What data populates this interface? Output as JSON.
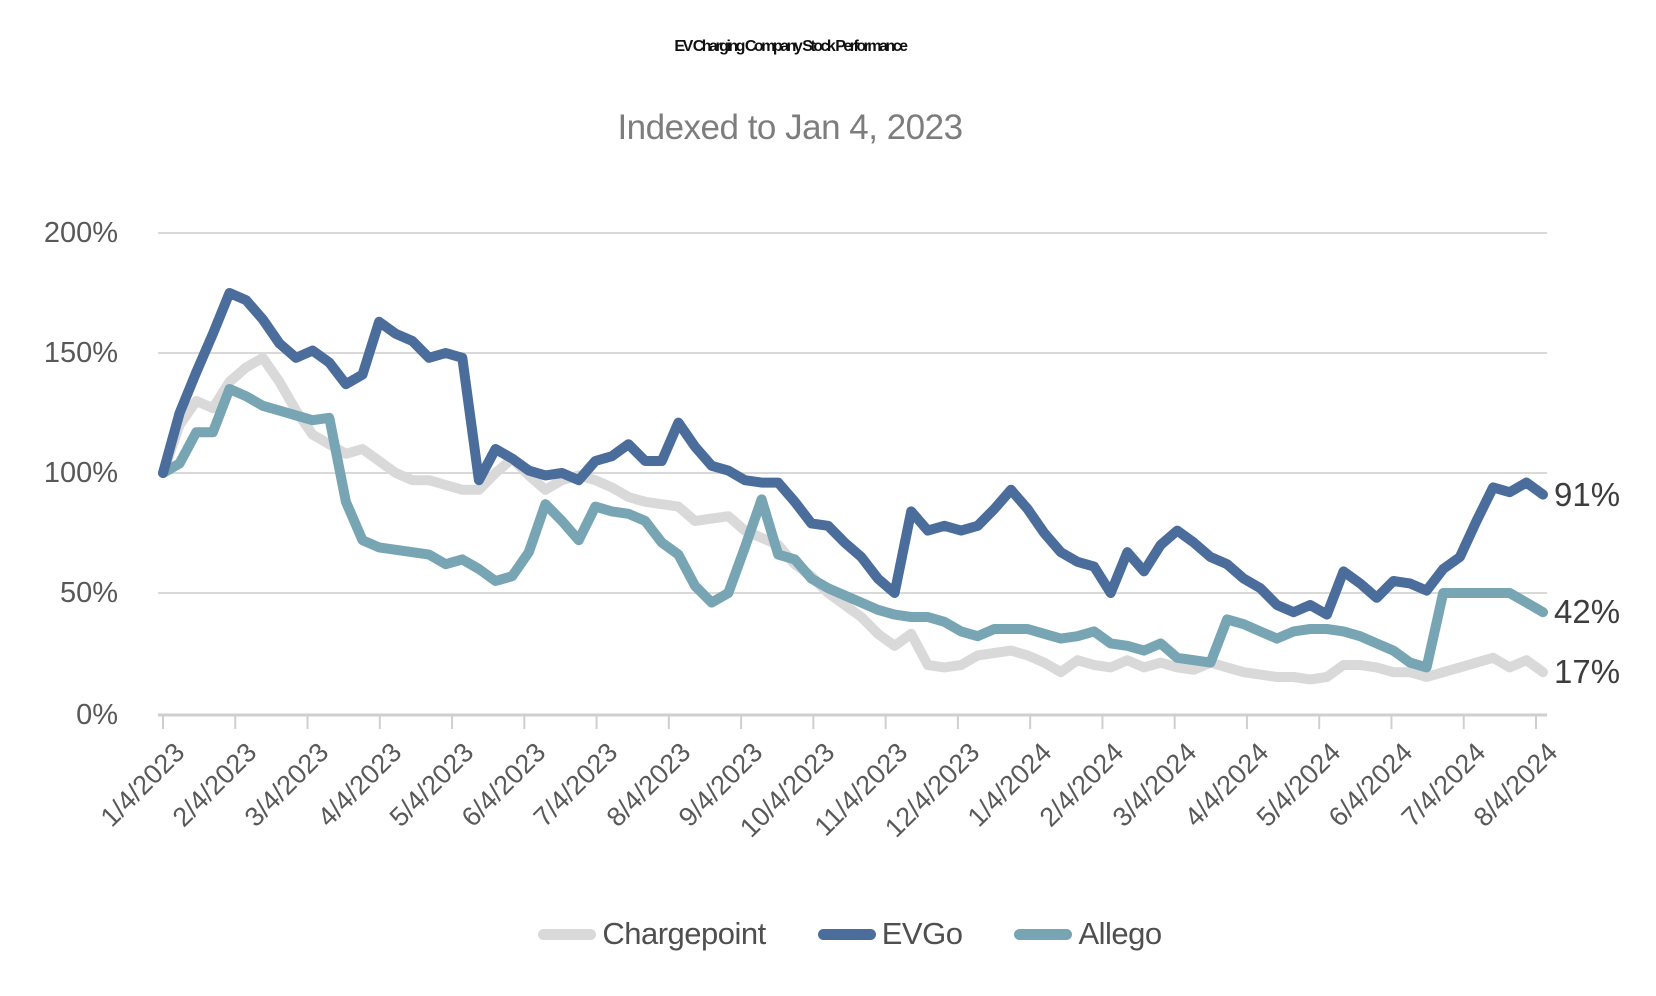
{
  "header": {
    "title": "EV Charging Company Stock Performance",
    "subtitle": "Indexed to Jan 4, 2023"
  },
  "chart_data": {
    "type": "line",
    "title": "EV Charging Company Stock Performance",
    "subtitle": "Indexed to Jan 4, 2023",
    "y_axis": {
      "min": 0,
      "max": 200,
      "step": 50,
      "unit": "%",
      "grid": true
    },
    "y_tick_labels": [
      "200%",
      "150%",
      "100%",
      "50%",
      "0%"
    ],
    "x_tick_labels": [
      "1/4/2023",
      "2/4/2023",
      "3/4/2023",
      "4/4/2023",
      "5/4/2023",
      "6/4/2023",
      "7/4/2023",
      "8/4/2023",
      "9/4/2023",
      "10/4/2023",
      "11/4/2023",
      "12/4/2023",
      "1/4/2024",
      "2/4/2024",
      "3/4/2024",
      "4/4/2024",
      "5/4/2024",
      "6/4/2024",
      "7/4/2024",
      "8/4/2024"
    ],
    "x_frequency": "weekly",
    "legend_position": "bottom",
    "series": [
      {
        "name": "Chargepoint",
        "color": "#d9d9d9",
        "end_label": "17%",
        "values": [
          100,
          120,
          130,
          127,
          138,
          144,
          148,
          138,
          126,
          116,
          112,
          108,
          110,
          105,
          100,
          97,
          97,
          95,
          93,
          93,
          100,
          106,
          99,
          93,
          97,
          99,
          97,
          94,
          90,
          88,
          87,
          86,
          80,
          81,
          82,
          76,
          73,
          70,
          62,
          57,
          50,
          45,
          40,
          33,
          28,
          33,
          20,
          19,
          20,
          24,
          25,
          26,
          24,
          21,
          17,
          22,
          20,
          19,
          22,
          19,
          21,
          19,
          18,
          21,
          19,
          17,
          16,
          15,
          15,
          14,
          15,
          20,
          20,
          19,
          17,
          17,
          15,
          17,
          19,
          21,
          23,
          19,
          22,
          17
        ]
      },
      {
        "name": "EVGo",
        "color": "#4a6d9b",
        "end_label": "91%",
        "values": [
          100,
          125,
          142,
          158,
          175,
          172,
          164,
          154,
          148,
          151,
          146,
          137,
          141,
          163,
          158,
          155,
          148,
          150,
          148,
          97,
          110,
          106,
          101,
          99,
          100,
          97,
          105,
          107,
          112,
          105,
          105,
          121,
          111,
          103,
          101,
          97,
          96,
          96,
          88,
          79,
          78,
          71,
          65,
          56,
          50,
          84,
          76,
          78,
          76,
          78,
          85,
          93,
          85,
          75,
          67,
          63,
          61,
          50,
          67,
          59,
          70,
          76,
          71,
          65,
          62,
          56,
          52,
          45,
          42,
          45,
          41,
          59,
          54,
          48,
          55,
          54,
          51,
          60,
          65,
          80,
          94,
          92,
          96,
          91
        ]
      },
      {
        "name": "Allego",
        "color": "#77a5b4",
        "end_label": "42%",
        "values": [
          100,
          104,
          117,
          117,
          135,
          132,
          128,
          126,
          124,
          122,
          123,
          88,
          72,
          69,
          68,
          67,
          66,
          62,
          64,
          60,
          55,
          57,
          67,
          87,
          80,
          72,
          86,
          84,
          83,
          80,
          71,
          66,
          53,
          46,
          50,
          69,
          89,
          66,
          64,
          56,
          52,
          49,
          46,
          43,
          41,
          40,
          40,
          38,
          34,
          32,
          35,
          35,
          35,
          33,
          31,
          32,
          34,
          29,
          28,
          26,
          29,
          23,
          22,
          21,
          39,
          37,
          34,
          31,
          34,
          35,
          35,
          34,
          32,
          29,
          26,
          21,
          19,
          50,
          50,
          50,
          50,
          50,
          46,
          42
        ]
      }
    ]
  },
  "style": {
    "grid_color": "#d9d9d9",
    "axis_color": "#cfcfcf",
    "tick_text_color": "#595959",
    "end_label_color": "#3d3d3d"
  }
}
